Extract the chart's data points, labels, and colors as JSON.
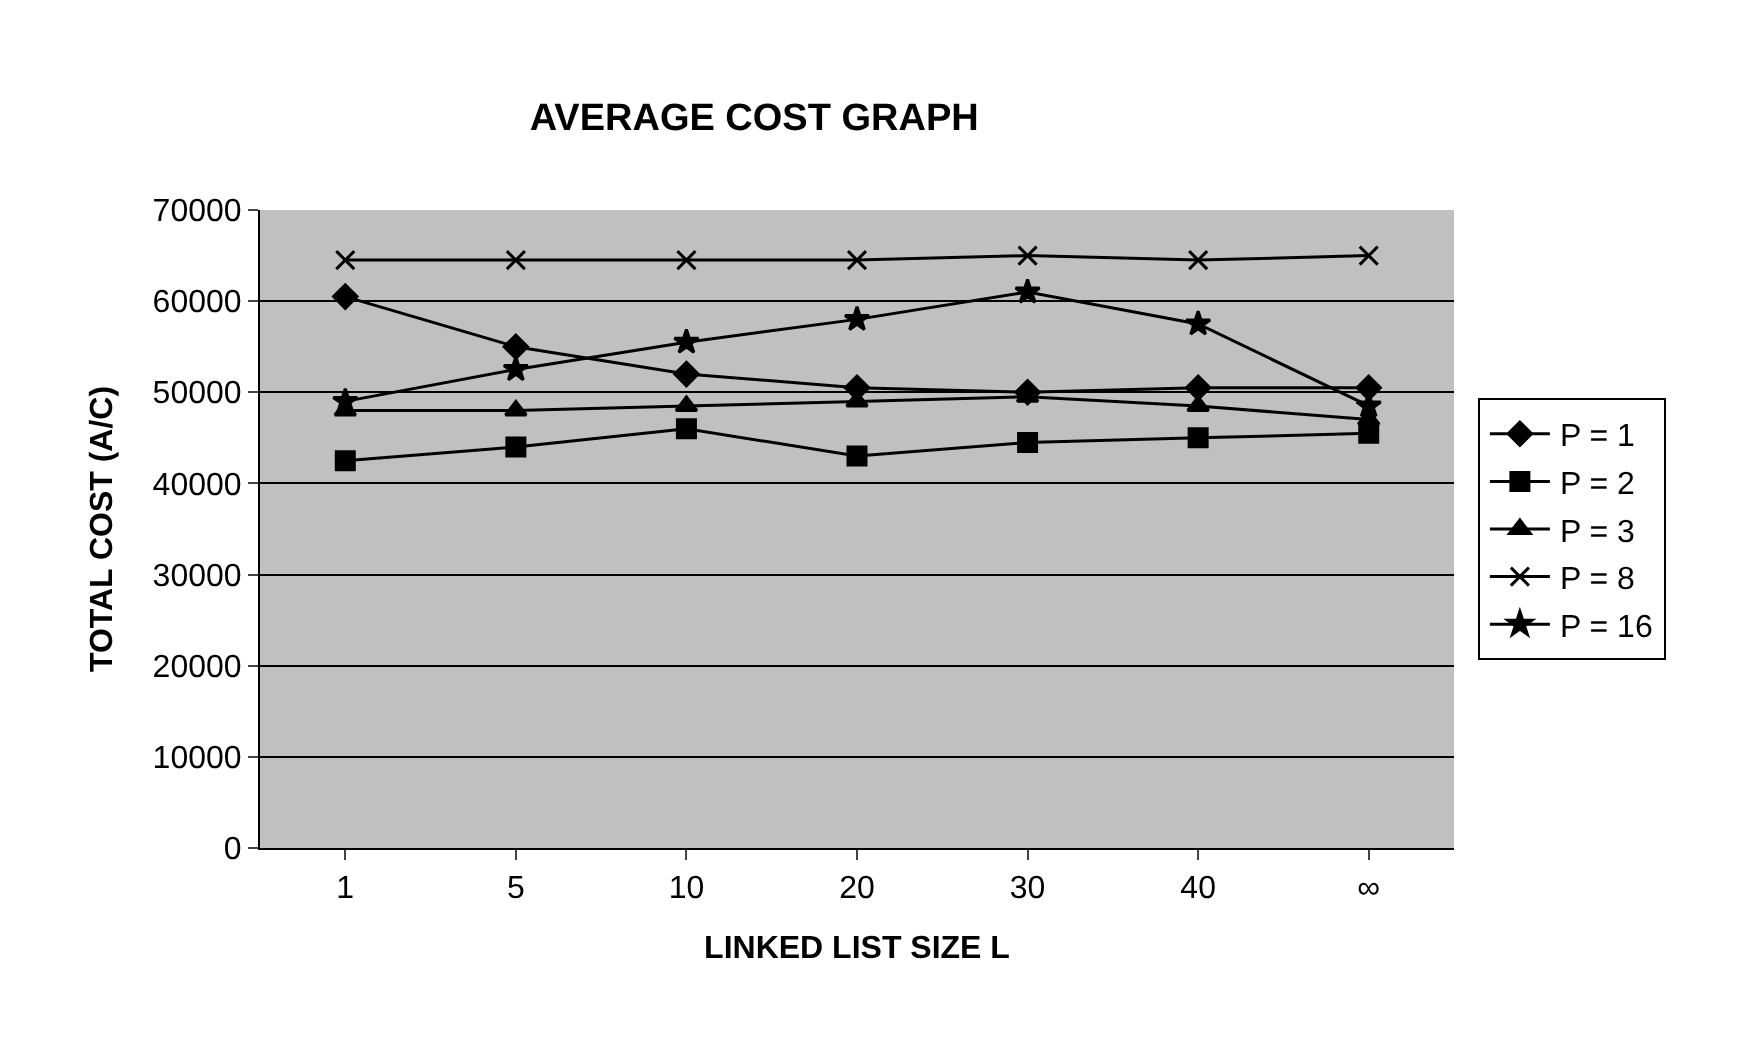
{
  "chart_data": {
    "type": "line",
    "title": "AVERAGE COST GRAPH",
    "xlabel": "LINKED LIST SIZE L",
    "ylabel": "TOTAL COST (A/C)",
    "categories": [
      "1",
      "5",
      "10",
      "20",
      "30",
      "40",
      "∞"
    ],
    "series": [
      {
        "name": "P = 1",
        "color": "#000000",
        "marker": "diamond",
        "values": [
          60500,
          55000,
          52000,
          50500,
          50000,
          50500,
          50500
        ]
      },
      {
        "name": "P = 2",
        "color": "#000000",
        "marker": "square",
        "values": [
          42500,
          44000,
          46000,
          43000,
          44500,
          45000,
          45500
        ]
      },
      {
        "name": "P = 3",
        "color": "#000000",
        "marker": "triangle",
        "values": [
          48000,
          48000,
          48500,
          49000,
          49500,
          48500,
          47000
        ]
      },
      {
        "name": "P = 8",
        "color": "#000000",
        "marker": "cross",
        "values": [
          64500,
          64500,
          64500,
          64500,
          65000,
          64500,
          65000
        ]
      },
      {
        "name": "P = 16",
        "color": "#000000",
        "marker": "star",
        "values": [
          49000,
          52500,
          55500,
          58000,
          61000,
          57500,
          48500
        ]
      }
    ],
    "ylim": [
      0,
      70000
    ],
    "yticks": [
      0,
      10000,
      20000,
      30000,
      40000,
      50000,
      60000,
      70000
    ],
    "grid": "y",
    "legend": "right"
  }
}
